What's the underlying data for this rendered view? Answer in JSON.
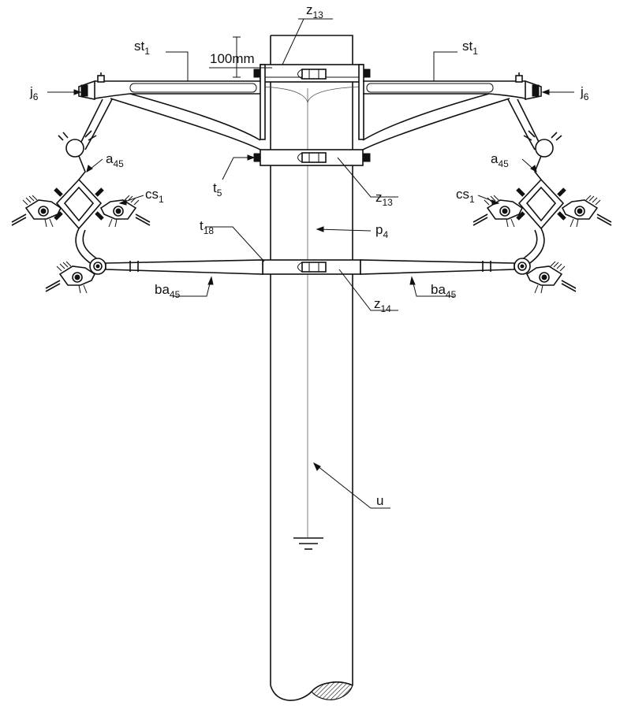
{
  "labels": {
    "z13_top": {
      "base": "z",
      "sub": "13"
    },
    "z13_mid": {
      "base": "z",
      "sub": "13"
    },
    "z14": {
      "base": "z",
      "sub": "14"
    },
    "st1_left": {
      "base": "st",
      "sub": "1"
    },
    "st1_right": {
      "base": "st",
      "sub": "1"
    },
    "j6_left": {
      "base": "j",
      "sub": "6"
    },
    "j6_right": {
      "base": "j",
      "sub": "6"
    },
    "a45_left": {
      "base": "a",
      "sub": "45"
    },
    "a45_right": {
      "base": "a",
      "sub": "45"
    },
    "cs1_left": {
      "base": "cs",
      "sub": "1"
    },
    "cs1_right": {
      "base": "cs",
      "sub": "1"
    },
    "t5": {
      "base": "t",
      "sub": "5"
    },
    "t18": {
      "base": "t",
      "sub": "18"
    },
    "p4": {
      "base": "p",
      "sub": "4"
    },
    "ba45_left": {
      "base": "ba",
      "sub": "45"
    },
    "ba45_right": {
      "base": "ba",
      "sub": "45"
    },
    "u": {
      "base": "u",
      "sub": ""
    }
  },
  "dimension": "100mm"
}
